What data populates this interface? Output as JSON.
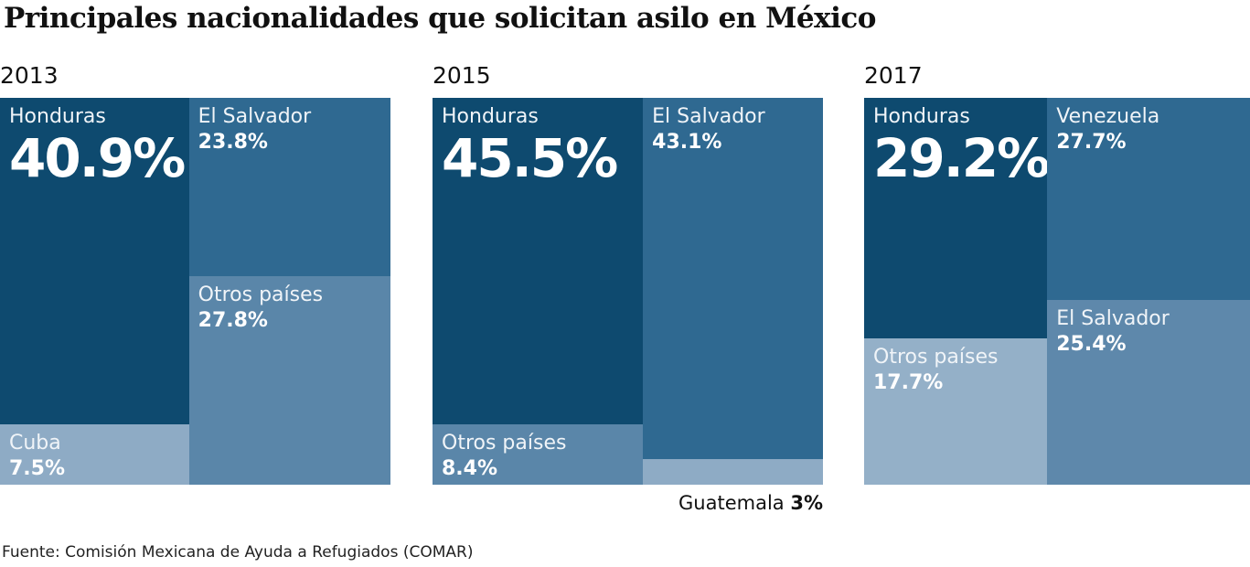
{
  "title": "Principales nacionalidades que solicitan asilo en México",
  "source": "Fuente: Comisión Mexicana de Ayuda a Refugiados (COMAR)",
  "chart_data": [
    {
      "type": "treemap",
      "title": "2013",
      "categories": [
        "Honduras",
        "Cuba",
        "El Salvador",
        "Otros países"
      ],
      "values": [
        40.9,
        7.5,
        23.8,
        27.8
      ],
      "value_labels": [
        "40.9%",
        "7.5%",
        "23.8%",
        "27.8%"
      ],
      "colors": [
        "#0e4a6f",
        "#8eabc5",
        "#2f6991",
        "#5a86a9"
      ]
    },
    {
      "type": "treemap",
      "title": "2015",
      "categories": [
        "Honduras",
        "Otros países",
        "El Salvador",
        "Guatemala"
      ],
      "values": [
        45.5,
        8.4,
        43.1,
        3
      ],
      "value_labels": [
        "45.5%",
        "8.4%",
        "43.1%",
        "3%"
      ],
      "colors": [
        "#0e4a6f",
        "#5a86a9",
        "#2f6991",
        "#8eabc5"
      ]
    },
    {
      "type": "treemap",
      "title": "2017",
      "categories": [
        "Honduras",
        "Otros países",
        "Venezuela",
        "El Salvador"
      ],
      "values": [
        29.2,
        17.7,
        27.7,
        25.4
      ],
      "value_labels": [
        "29.2%",
        "17.7%",
        "27.7%",
        "25.4%"
      ],
      "colors": [
        "#0e4a6f",
        "#94b0c8",
        "#2f6991",
        "#5e88ab"
      ]
    }
  ]
}
